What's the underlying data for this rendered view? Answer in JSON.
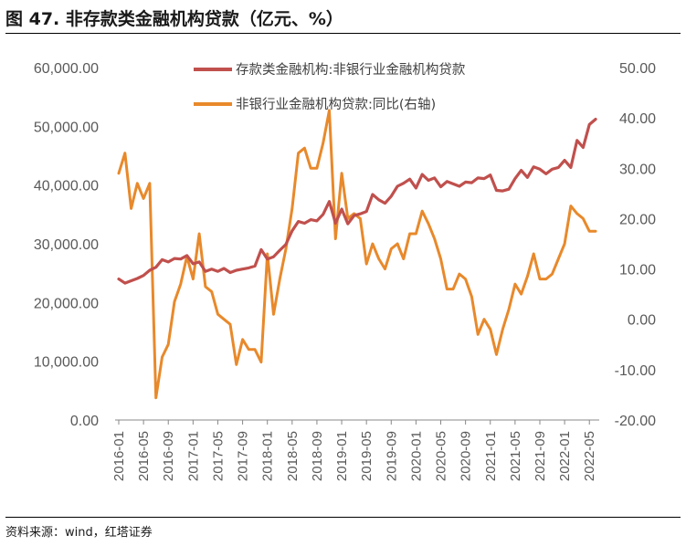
{
  "title": "图 47. 非存款类金融机构贷款（亿元、%）",
  "source": "资料来源：wind，红塔证券",
  "chart_data": {
    "type": "line",
    "title": "图 47. 非存款类金融机构贷款（亿元、%）",
    "y_left": {
      "ylim": [
        0,
        60000
      ],
      "ticks": [
        "0.00",
        "10,000.00",
        "20,000.00",
        "30,000.00",
        "40,000.00",
        "50,000.00",
        "60,000.00"
      ]
    },
    "y_right": {
      "ylim": [
        -20,
        50
      ],
      "ticks": [
        "-20.00",
        "-10.00",
        "0.00",
        "10.00",
        "20.00",
        "30.00",
        "40.00",
        "50.00"
      ]
    },
    "x_ticks": [
      "2016-01",
      "2016-05",
      "2016-09",
      "2017-01",
      "2017-05",
      "2017-09",
      "2018-01",
      "2018-05",
      "2018-09",
      "2019-01",
      "2019-05",
      "2019-09",
      "2020-01",
      "2020-05",
      "2020-09",
      "2021-01",
      "2021-05",
      "2021-09",
      "2022-01",
      "2022-05"
    ],
    "months": [
      "2016-01",
      "2016-02",
      "2016-03",
      "2016-04",
      "2016-05",
      "2016-06",
      "2016-07",
      "2016-08",
      "2016-09",
      "2016-10",
      "2016-11",
      "2016-12",
      "2017-01",
      "2017-02",
      "2017-03",
      "2017-04",
      "2017-05",
      "2017-06",
      "2017-07",
      "2017-08",
      "2017-09",
      "2017-10",
      "2017-11",
      "2017-12",
      "2018-01",
      "2018-02",
      "2018-03",
      "2018-04",
      "2018-05",
      "2018-06",
      "2018-07",
      "2018-08",
      "2018-09",
      "2018-10",
      "2018-11",
      "2018-12",
      "2019-01",
      "2019-02",
      "2019-03",
      "2019-04",
      "2019-05",
      "2019-06",
      "2019-07",
      "2019-08",
      "2019-09",
      "2019-10",
      "2019-11",
      "2019-12",
      "2020-01",
      "2020-02",
      "2020-03",
      "2020-04",
      "2020-05",
      "2020-06",
      "2020-07",
      "2020-08",
      "2020-09",
      "2020-10",
      "2020-11",
      "2020-12",
      "2021-01",
      "2021-02",
      "2021-03",
      "2021-04",
      "2021-05",
      "2021-06",
      "2021-07",
      "2021-08",
      "2021-09",
      "2021-10",
      "2021-11",
      "2021-12",
      "2022-01",
      "2022-02",
      "2022-03",
      "2022-04",
      "2022-05",
      "2022-06"
    ],
    "series": [
      {
        "name": "存款类金融机构:非银行业金融机构贷款",
        "axis": "left",
        "color": "#C0504D",
        "values": [
          24000,
          23300,
          23700,
          24100,
          24600,
          25500,
          26000,
          27300,
          26900,
          27500,
          27400,
          28000,
          26600,
          26900,
          25300,
          25700,
          25300,
          25800,
          25100,
          25500,
          25700,
          25900,
          26200,
          29000,
          27400,
          27800,
          28900,
          29900,
          32200,
          33800,
          33500,
          34100,
          33900,
          35000,
          37200,
          33500,
          35900,
          33400,
          34800,
          35100,
          35500,
          38400,
          37500,
          36900,
          38100,
          39800,
          40300,
          41000,
          39500,
          41800,
          40800,
          41200,
          39700,
          40600,
          40200,
          39800,
          40500,
          40400,
          41200,
          41100,
          41700,
          39100,
          39000,
          39300,
          41100,
          42500,
          41300,
          43100,
          42700,
          41900,
          42700,
          43000,
          44200,
          43000,
          47600,
          46400,
          50300,
          51200
        ]
      },
      {
        "name": "非银行业金融机构贷款:同比(右轴)",
        "axis": "right",
        "color": "#E8892B",
        "values": [
          29,
          33,
          22,
          27,
          24,
          27,
          -15.6,
          -7.5,
          -5,
          3.5,
          7,
          12.5,
          8,
          17,
          6.5,
          5.5,
          1,
          0,
          -1,
          -9,
          -4,
          -6,
          -6,
          -8.5,
          13,
          1,
          8,
          14,
          22,
          33,
          34,
          30,
          30,
          35,
          41.5,
          16,
          29,
          20,
          21,
          20,
          11,
          15,
          12,
          10,
          14,
          15,
          12,
          17,
          17,
          21.5,
          19,
          16,
          12,
          6,
          6,
          9,
          8,
          4.5,
          -3,
          0,
          -2,
          -7,
          -2,
          2,
          7,
          5,
          8.5,
          13,
          8,
          8,
          9,
          12,
          15,
          22.5,
          21,
          20,
          17.5,
          17.5
        ]
      }
    ],
    "legend": [
      "存款类金融机构:非银行业金融机构贷款",
      "非银行业金融机构贷款:同比(右轴)"
    ]
  }
}
